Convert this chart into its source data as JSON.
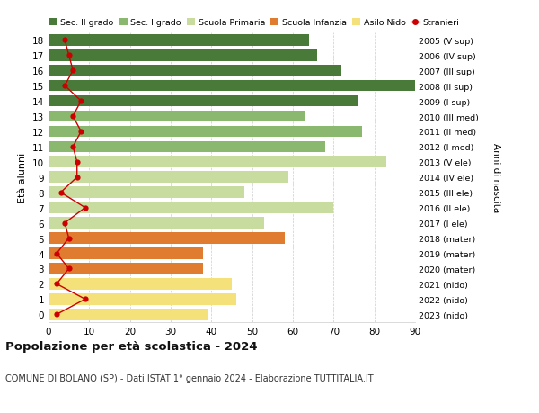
{
  "ages": [
    0,
    1,
    2,
    3,
    4,
    5,
    6,
    7,
    8,
    9,
    10,
    11,
    12,
    13,
    14,
    15,
    16,
    17,
    18
  ],
  "right_labels": [
    "2023 (nido)",
    "2022 (nido)",
    "2021 (nido)",
    "2020 (mater)",
    "2019 (mater)",
    "2018 (mater)",
    "2017 (I ele)",
    "2016 (II ele)",
    "2015 (III ele)",
    "2014 (IV ele)",
    "2013 (V ele)",
    "2012 (I med)",
    "2011 (II med)",
    "2010 (III med)",
    "2009 (I sup)",
    "2008 (II sup)",
    "2007 (III sup)",
    "2006 (IV sup)",
    "2005 (V sup)"
  ],
  "bar_values": [
    39,
    46,
    45,
    38,
    38,
    58,
    53,
    70,
    48,
    59,
    83,
    68,
    77,
    63,
    76,
    90,
    72,
    66,
    64
  ],
  "bar_colors": [
    "#f5e17a",
    "#f5e17a",
    "#f5e17a",
    "#e07c30",
    "#e07c30",
    "#e07c30",
    "#c8dca0",
    "#c8dca0",
    "#c8dca0",
    "#c8dca0",
    "#c8dca0",
    "#8ab86e",
    "#8ab86e",
    "#8ab86e",
    "#4a7a3a",
    "#4a7a3a",
    "#4a7a3a",
    "#4a7a3a",
    "#4a7a3a"
  ],
  "stranieri_values": [
    2,
    9,
    2,
    5,
    2,
    5,
    4,
    9,
    3,
    7,
    7,
    6,
    8,
    6,
    8,
    4,
    6,
    5,
    4
  ],
  "legend_labels": [
    "Sec. II grado",
    "Sec. I grado",
    "Scuola Primaria",
    "Scuola Infanzia",
    "Asilo Nido",
    "Stranieri"
  ],
  "legend_colors": [
    "#4a7a3a",
    "#8ab86e",
    "#c8dca0",
    "#e07c30",
    "#f5e17a",
    "#cc0000"
  ],
  "ylabel_label": "Età alunni",
  "right_ylabel": "Anni di nascita",
  "title": "Popolazione per età scolastica - 2024",
  "subtitle": "COMUNE DI BOLANO (SP) - Dati ISTAT 1° gennaio 2024 - Elaborazione TUTTITALIA.IT",
  "xlim": [
    0,
    90
  ],
  "xticks": [
    0,
    10,
    20,
    30,
    40,
    50,
    60,
    70,
    80,
    90
  ],
  "bg_color": "#ffffff",
  "grid_color": "#cccccc"
}
